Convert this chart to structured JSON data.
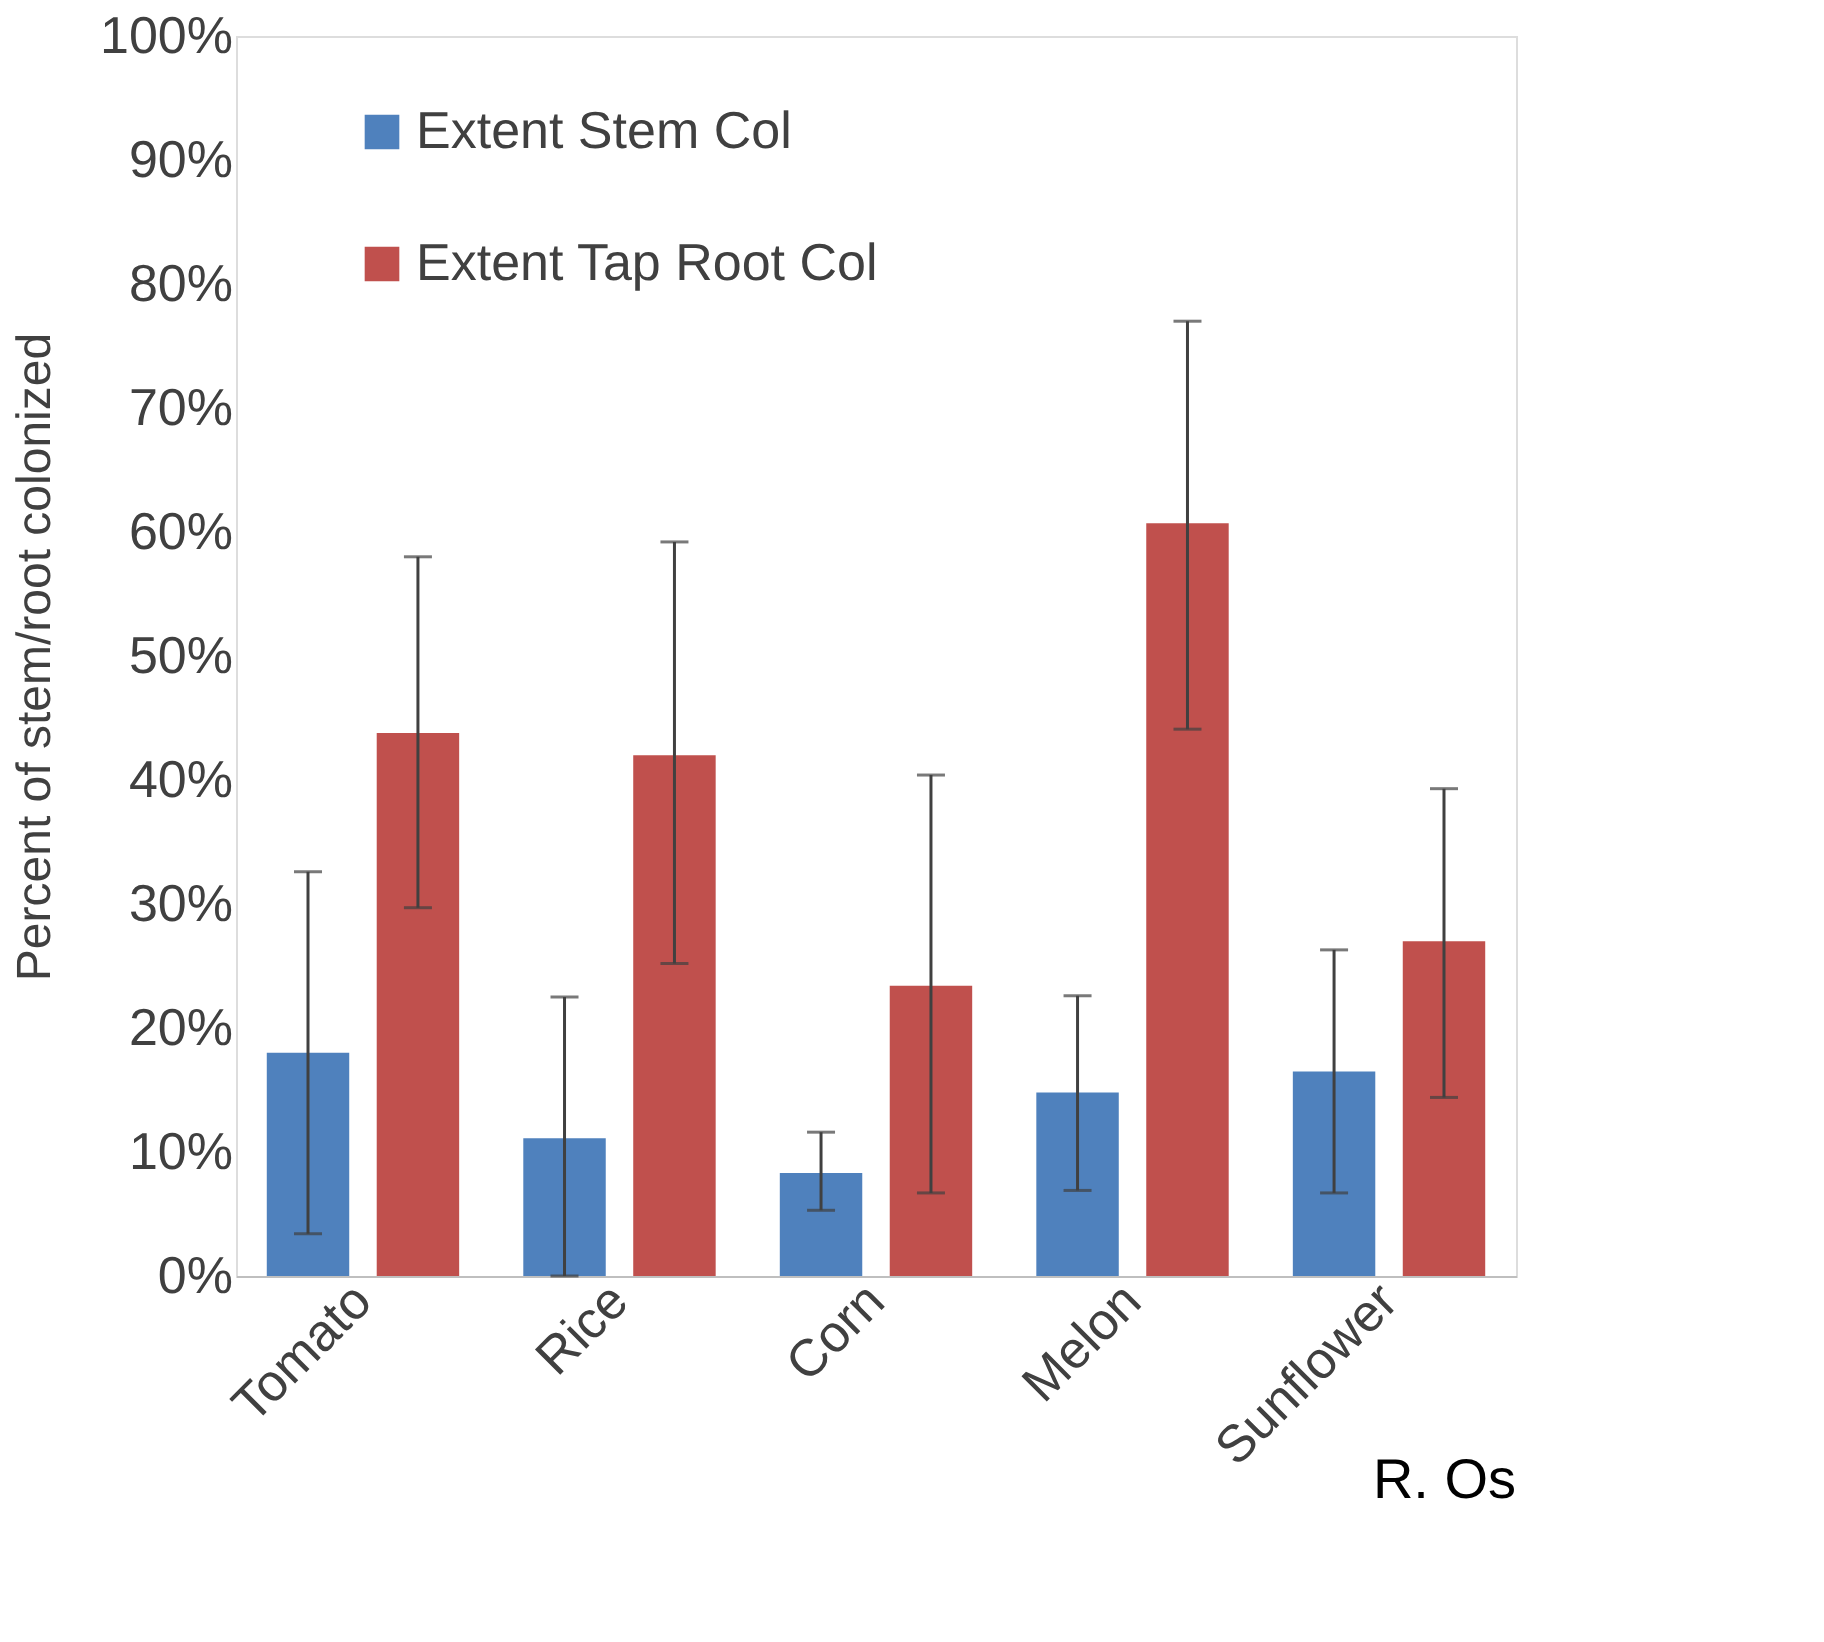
{
  "chart_data": {
    "type": "bar",
    "ylabel": "Percent of stem/root colonized",
    "categories": [
      "Tomato",
      "Rice",
      "Corn",
      "Melon",
      "Sunflower"
    ],
    "series": [
      {
        "name": "Extent Stem Col",
        "color": "#4f81bd",
        "values": [
          18,
          11.1,
          8.3,
          14.8,
          16.5
        ],
        "errors": [
          [
            3.4,
            32.6
          ],
          [
            0,
            22.5
          ],
          [
            5.3,
            11.6
          ],
          [
            6.9,
            22.6
          ],
          [
            6.7,
            26.3
          ]
        ]
      },
      {
        "name": "Extent Tap Root Col",
        "color": "#c0504d",
        "values": [
          43.8,
          42,
          23.4,
          60.7,
          27
        ],
        "errors": [
          [
            29.7,
            58
          ],
          [
            25.2,
            59.2
          ],
          [
            6.7,
            40.4
          ],
          [
            44.1,
            77
          ],
          [
            14.4,
            39.3
          ]
        ]
      }
    ],
    "ylim": [
      0,
      100
    ],
    "yticks": [
      {
        "value": 0,
        "label": "0%"
      },
      {
        "value": 10,
        "label": "10%"
      },
      {
        "value": 20,
        "label": "20%"
      },
      {
        "value": 30,
        "label": "30%"
      },
      {
        "value": 40,
        "label": "40%"
      },
      {
        "value": 50,
        "label": "50%"
      },
      {
        "value": 60,
        "label": "60%"
      },
      {
        "value": 70,
        "label": "70%"
      },
      {
        "value": 80,
        "label": "80%"
      },
      {
        "value": 90,
        "label": "90%"
      },
      {
        "value": 100,
        "label": "100%"
      }
    ],
    "grid": false,
    "legend": "top left",
    "annotations": [
      "R. Os"
    ]
  }
}
